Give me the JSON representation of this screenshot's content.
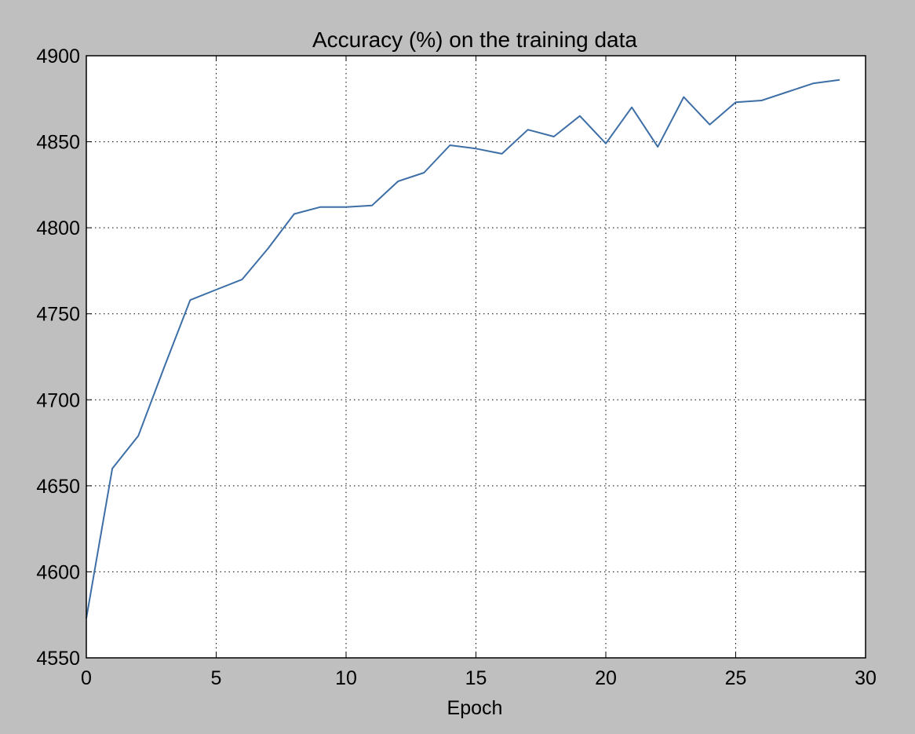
{
  "chart_data": {
    "type": "line",
    "title": "Accuracy (%) on the training data",
    "xlabel": "Epoch",
    "ylabel": "",
    "xlim": [
      0,
      30
    ],
    "ylim": [
      4550,
      4900
    ],
    "xticks": [
      0,
      5,
      10,
      15,
      20,
      25,
      30
    ],
    "yticks": [
      4550,
      4600,
      4650,
      4700,
      4750,
      4800,
      4850,
      4900
    ],
    "grid": true,
    "legend": null,
    "series": [
      {
        "color": "#3d6fa6",
        "x": [
          0,
          1,
          2,
          3,
          4,
          5,
          6,
          7,
          8,
          9,
          10,
          11,
          12,
          13,
          14,
          15,
          16,
          17,
          18,
          19,
          20,
          21,
          22,
          23,
          24,
          25,
          26,
          27,
          28,
          29
        ],
        "y": [
          4573,
          4660,
          4679,
          4719,
          4758,
          4764,
          4770,
          4788,
          4808,
          4812,
          4812,
          4813,
          4827,
          4832,
          4848,
          4846,
          4843,
          4857,
          4853,
          4865,
          4849,
          4870,
          4847,
          4876,
          4860,
          4873,
          4874,
          4879,
          4884,
          4886
        ]
      }
    ]
  },
  "colors": {
    "figure_background": "#bfbfbf",
    "plot_background": "#ffffff",
    "line": "#3d6fa6"
  }
}
